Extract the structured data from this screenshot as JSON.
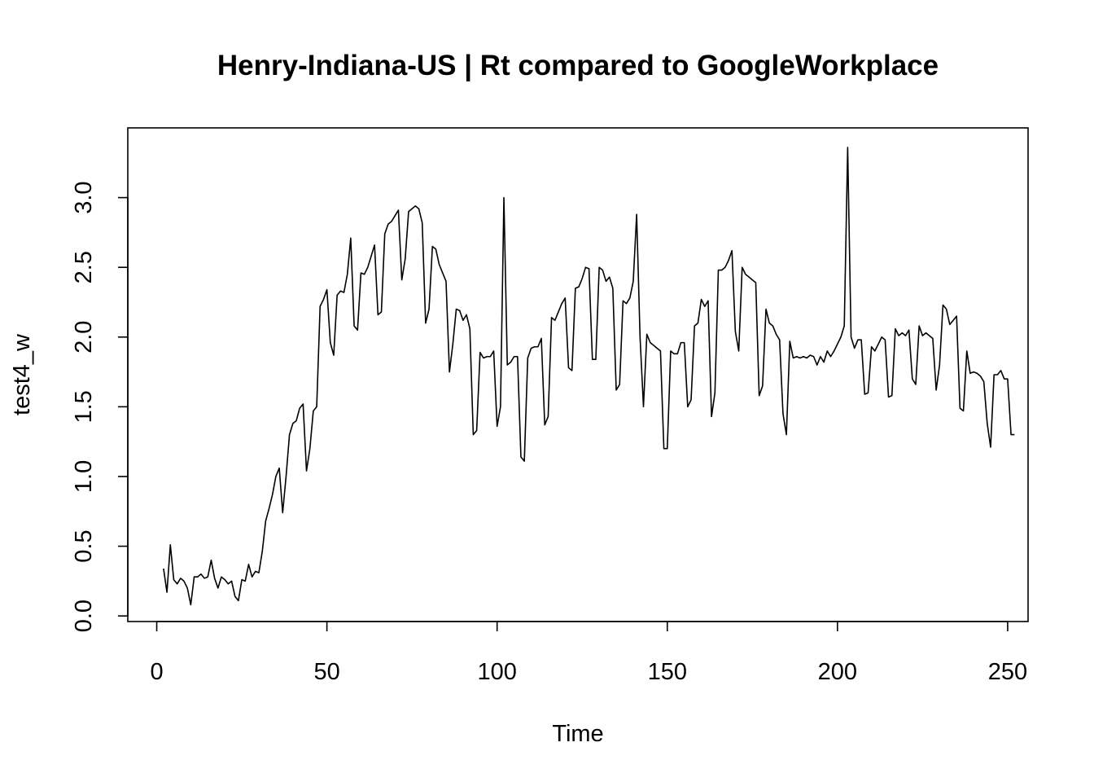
{
  "chart_data": {
    "type": "line",
    "title": "Henry-Indiana-US | Rt compared to GoogleWorkplace",
    "xlabel": "Time",
    "ylabel": "test4_w",
    "xlim": [
      -8.5,
      256
    ],
    "ylim": [
      -0.04,
      3.5
    ],
    "x_ticks": [
      0,
      50,
      100,
      150,
      200,
      250
    ],
    "y_ticks": [
      0.0,
      0.5,
      1.0,
      1.5,
      2.0,
      2.5,
      3.0
    ],
    "x_tick_labels": [
      "0",
      "50",
      "100",
      "150",
      "200",
      "250"
    ],
    "y_tick_labels": [
      "0.0",
      "0.5",
      "1.0",
      "1.5",
      "2.0",
      "2.5",
      "3.0"
    ],
    "grid": false,
    "legend": "none",
    "line_color": "#000000",
    "series": [
      {
        "x_start": 2,
        "values": [
          0.34,
          0.17,
          0.51,
          0.26,
          0.23,
          0.27,
          0.25,
          0.2,
          0.08,
          0.28,
          0.28,
          0.3,
          0.27,
          0.28,
          0.4,
          0.27,
          0.2,
          0.28,
          0.26,
          0.23,
          0.25,
          0.14,
          0.11,
          0.26,
          0.25,
          0.37,
          0.28,
          0.32,
          0.31,
          0.46,
          0.68,
          0.77,
          0.87,
          1.0,
          1.06,
          0.74,
          1.0,
          1.3,
          1.38,
          1.4,
          1.49,
          1.52,
          1.04,
          1.2,
          1.47,
          1.5,
          2.22,
          2.27,
          2.34,
          1.96,
          1.87,
          2.3,
          2.33,
          2.32,
          2.45,
          2.71,
          2.08,
          2.05,
          2.46,
          2.45,
          2.5,
          2.58,
          2.66,
          2.16,
          2.18,
          2.74,
          2.81,
          2.83,
          2.87,
          2.91,
          2.41,
          2.56,
          2.9,
          2.92,
          2.94,
          2.92,
          2.82,
          2.1,
          2.2,
          2.65,
          2.63,
          2.52,
          2.46,
          2.4,
          1.75,
          1.95,
          2.2,
          2.19,
          2.12,
          2.16,
          2.06,
          1.3,
          1.33,
          1.89,
          1.85,
          1.86,
          1.86,
          1.9,
          1.36,
          1.5,
          3.0,
          1.8,
          1.82,
          1.86,
          1.86,
          1.14,
          1.11,
          1.85,
          1.92,
          1.93,
          1.93,
          1.99,
          1.37,
          1.43,
          2.14,
          2.12,
          2.18,
          2.24,
          2.28,
          1.78,
          1.76,
          2.35,
          2.36,
          2.42,
          2.5,
          2.49,
          1.84,
          1.84,
          2.5,
          2.48,
          2.4,
          2.43,
          2.35,
          1.62,
          1.66,
          2.26,
          2.24,
          2.28,
          2.4,
          2.88,
          2.0,
          1.5,
          2.02,
          1.96,
          1.94,
          1.92,
          1.9,
          1.2,
          1.2,
          1.9,
          1.88,
          1.88,
          1.96,
          1.96,
          1.5,
          1.55,
          2.08,
          2.1,
          2.27,
          2.22,
          2.26,
          1.43,
          1.6,
          2.48,
          2.48,
          2.5,
          2.55,
          2.62,
          2.04,
          1.9,
          2.5,
          2.45,
          2.43,
          2.41,
          2.39,
          1.58,
          1.65,
          2.2,
          2.1,
          2.08,
          2.02,
          1.98,
          1.45,
          1.3,
          1.97,
          1.85,
          1.86,
          1.85,
          1.86,
          1.85,
          1.87,
          1.86,
          1.8,
          1.86,
          1.82,
          1.9,
          1.86,
          1.9,
          1.95,
          2.0,
          2.08,
          3.36,
          2.0,
          1.92,
          1.98,
          1.98,
          1.59,
          1.6,
          1.93,
          1.9,
          1.95,
          2.0,
          1.98,
          1.57,
          1.58,
          2.06,
          2.01,
          2.03,
          2.01,
          2.05,
          1.7,
          1.66,
          2.08,
          2.01,
          2.03,
          2.01,
          1.99,
          1.62,
          1.8,
          2.23,
          2.2,
          2.09,
          2.12,
          2.15,
          1.49,
          1.47,
          1.9,
          1.74,
          1.75,
          1.74,
          1.72,
          1.68,
          1.38,
          1.21,
          1.73,
          1.73,
          1.76,
          1.7,
          1.7,
          1.3,
          1.3
        ]
      }
    ]
  }
}
